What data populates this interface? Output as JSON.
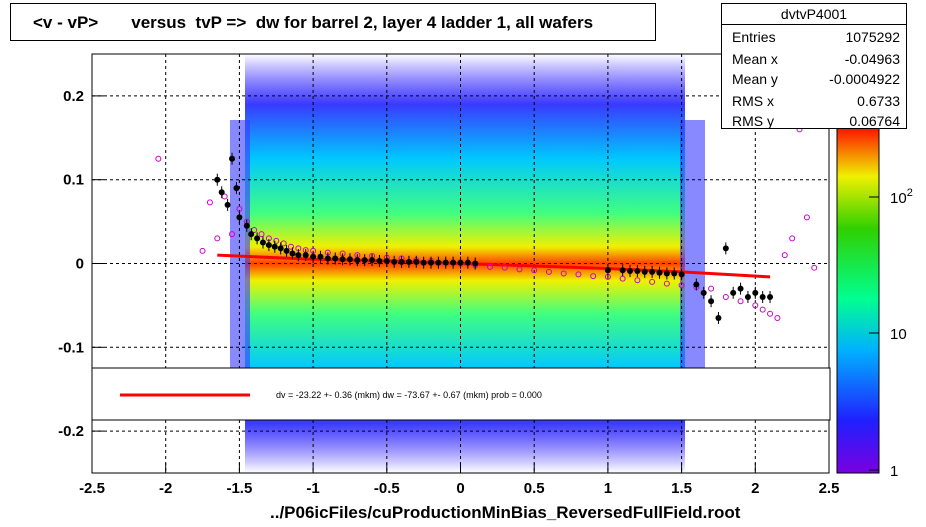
{
  "title": "<v - vP>       versus  tvP =>  dw for barrel 2, layer 4 ladder 1, all wafers",
  "stats": {
    "name": "dvtvP4001",
    "rows": [
      {
        "key": "Entries",
        "value": "1075292"
      },
      {
        "key": "Mean x",
        "value": "-0.04963"
      },
      {
        "key": "Mean y",
        "value": "-0.0004922"
      },
      {
        "key": "RMS x",
        "value": "0.6733"
      },
      {
        "key": "RMS y",
        "value": "0.06764"
      }
    ]
  },
  "legend_text": "dv =  -23.22 +-  0.36 (mkm) dw =  -73.67 +-  0.67 (mkm) prob = 0.000",
  "footer": "../P06icFiles/cuProductionMinBias_ReversedFullField.root",
  "colors": {
    "fit_line": "#ff0000",
    "profile_black": "#000000",
    "profile_magenta": "#cc00cc"
  },
  "chart_data": {
    "type": "heatmap",
    "xlim": [
      -2.5,
      2.5
    ],
    "ylim": [
      -0.25,
      0.25
    ],
    "x_ticks": [
      "-2.5",
      "-2",
      "-1.5",
      "-1",
      "-0.5",
      "0",
      "0.5",
      "1",
      "1.5",
      "2",
      "2.5"
    ],
    "y_ticks": [
      "-0.2",
      "-0.1",
      "0",
      "0.1",
      "0.2"
    ],
    "colorbar_ticks": [
      "1",
      "10",
      "10^2"
    ],
    "grid": true,
    "fit_line": {
      "x": [
        -1.65,
        -1.4,
        -1.0,
        -0.5,
        0.0,
        0.5,
        1.0,
        1.5,
        2.1
      ],
      "y": [
        0.01,
        0.008,
        0.005,
        0.003,
        0.0,
        -0.003,
        -0.006,
        -0.01,
        -0.016
      ]
    },
    "profile_black": {
      "x": [
        -1.65,
        -1.62,
        -1.58,
        -1.55,
        -1.52,
        -1.5,
        -1.45,
        -1.42,
        -1.38,
        -1.34,
        -1.3,
        -1.26,
        -1.22,
        -1.18,
        -1.14,
        -1.1,
        -1.05,
        -1.0,
        -0.95,
        -0.9,
        -0.85,
        -0.8,
        -0.75,
        -0.7,
        -0.65,
        -0.6,
        -0.55,
        -0.5,
        -0.45,
        -0.4,
        -0.35,
        -0.3,
        -0.25,
        -0.2,
        -0.15,
        -0.1,
        -0.05,
        0.0,
        0.05,
        0.1,
        1.0,
        1.1,
        1.15,
        1.2,
        1.25,
        1.3,
        1.35,
        1.4,
        1.45,
        1.5,
        1.6,
        1.65,
        1.7,
        1.75,
        1.8,
        1.85,
        1.9,
        1.95,
        2.0,
        2.05,
        2.1
      ],
      "y": [
        0.1,
        0.085,
        0.07,
        0.125,
        0.09,
        0.055,
        0.045,
        0.035,
        0.03,
        0.025,
        0.022,
        0.02,
        0.018,
        0.015,
        0.012,
        0.01,
        0.01,
        0.008,
        0.008,
        0.006,
        0.006,
        0.005,
        0.005,
        0.004,
        0.004,
        0.004,
        0.003,
        0.003,
        0.002,
        0.002,
        0.002,
        0.002,
        0.001,
        0.001,
        0.001,
        0.001,
        0.001,
        0.001,
        0.001,
        0.0,
        -0.008,
        -0.008,
        -0.009,
        -0.009,
        -0.01,
        -0.01,
        -0.011,
        -0.012,
        -0.012,
        -0.013,
        -0.025,
        -0.035,
        -0.045,
        -0.065,
        0.018,
        -0.035,
        -0.03,
        -0.04,
        -0.035,
        -0.04,
        -0.04
      ]
    },
    "profile_magenta": {
      "x": [
        -2.05,
        -1.75,
        -1.7,
        -1.65,
        -1.6,
        -1.55,
        -1.5,
        -1.45,
        -1.4,
        -1.35,
        -1.3,
        -1.25,
        -1.2,
        -1.15,
        -1.1,
        -1.05,
        -1.0,
        -0.9,
        -0.8,
        -0.7,
        -0.6,
        -0.5,
        -0.4,
        -0.3,
        -0.2,
        -0.1,
        0.0,
        0.1,
        0.2,
        0.3,
        0.4,
        0.5,
        0.6,
        0.7,
        0.8,
        0.9,
        1.0,
        1.1,
        1.2,
        1.3,
        1.4,
        1.5,
        1.6,
        1.7,
        1.8,
        1.9,
        2.0,
        2.05,
        2.1,
        2.15,
        2.2,
        2.25,
        2.3,
        2.35,
        2.4
      ],
      "y": [
        0.125,
        0.015,
        0.073,
        0.03,
        0.08,
        0.035,
        0.065,
        0.05,
        0.04,
        0.035,
        0.03,
        0.027,
        0.024,
        0.02,
        0.018,
        0.016,
        0.015,
        0.013,
        0.012,
        0.01,
        0.009,
        0.007,
        0.006,
        0.004,
        0.003,
        0.001,
        0.0,
        -0.002,
        -0.004,
        -0.005,
        -0.007,
        -0.008,
        -0.01,
        -0.012,
        -0.013,
        -0.015,
        -0.016,
        -0.018,
        -0.02,
        -0.022,
        -0.024,
        -0.026,
        -0.028,
        -0.03,
        -0.04,
        -0.045,
        -0.05,
        -0.055,
        -0.06,
        -0.065,
        0.01,
        0.03,
        0.16,
        0.055,
        -0.005
      ]
    }
  }
}
